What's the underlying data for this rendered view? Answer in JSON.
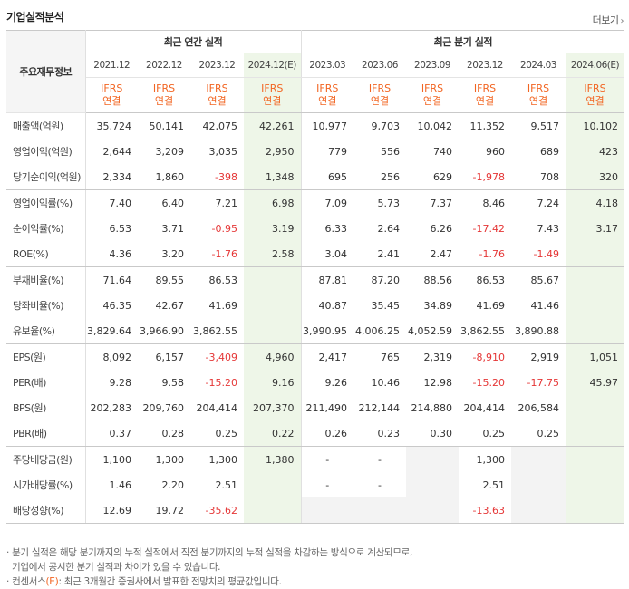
{
  "title": "기업실적분석",
  "more_label": "더보기",
  "row_header_label": "주요재무정보",
  "annual_group": "최근 연간 실적",
  "quarter_group": "최근 분기 실적",
  "periods": [
    "2021.12",
    "2022.12",
    "2023.12",
    "2024.12(E)",
    "2023.03",
    "2023.06",
    "2023.09",
    "2023.12",
    "2024.03",
    "2024.06(E)"
  ],
  "ifrs": [
    "IFRS",
    "IFRS",
    "IFRS",
    "IFRS",
    "IFRS",
    "IFRS",
    "IFRS",
    "IFRS",
    "IFRS",
    "IFRS"
  ],
  "consol": [
    "연결",
    "연결",
    "연결",
    "연결",
    "연결",
    "연결",
    "연결",
    "연결",
    "연결",
    "연결"
  ],
  "rows": [
    {
      "label": "매출액(억원)",
      "values": [
        "35,724",
        "50,141",
        "42,075",
        "42,261",
        "10,977",
        "9,703",
        "10,042",
        "11,352",
        "9,517",
        "10,102"
      ]
    },
    {
      "label": "영업이익(억원)",
      "values": [
        "2,644",
        "3,209",
        "3,035",
        "2,950",
        "779",
        "556",
        "740",
        "960",
        "689",
        "423"
      ]
    },
    {
      "label": "당기순이익(억원)",
      "values": [
        "2,334",
        "1,860",
        "-398",
        "1,348",
        "695",
        "256",
        "629",
        "-1,978",
        "708",
        "320"
      ]
    },
    {
      "label": "영업이익률(%)",
      "values": [
        "7.40",
        "6.40",
        "7.21",
        "6.98",
        "7.09",
        "5.73",
        "7.37",
        "8.46",
        "7.24",
        "4.18"
      ]
    },
    {
      "label": "순이익률(%)",
      "values": [
        "6.53",
        "3.71",
        "-0.95",
        "3.19",
        "6.33",
        "2.64",
        "6.26",
        "-17.42",
        "7.43",
        "3.17"
      ]
    },
    {
      "label": "ROE(%)",
      "values": [
        "4.36",
        "3.20",
        "-1.76",
        "2.58",
        "3.04",
        "2.41",
        "2.47",
        "-1.76",
        "-1.49",
        ""
      ]
    },
    {
      "label": "부채비율(%)",
      "values": [
        "71.64",
        "89.55",
        "86.53",
        "",
        "87.81",
        "87.20",
        "88.56",
        "86.53",
        "85.67",
        ""
      ]
    },
    {
      "label": "당좌비율(%)",
      "values": [
        "46.35",
        "42.67",
        "41.69",
        "",
        "40.87",
        "35.45",
        "34.89",
        "41.69",
        "41.46",
        ""
      ]
    },
    {
      "label": "유보율(%)",
      "values": [
        "3,829.64",
        "3,966.90",
        "3,862.55",
        "",
        "3,990.95",
        "4,006.25",
        "4,052.59",
        "3,862.55",
        "3,890.88",
        ""
      ]
    },
    {
      "label": "EPS(원)",
      "values": [
        "8,092",
        "6,157",
        "-3,409",
        "4,960",
        "2,417",
        "765",
        "2,319",
        "-8,910",
        "2,919",
        "1,051"
      ]
    },
    {
      "label": "PER(배)",
      "values": [
        "9.28",
        "9.58",
        "-15.20",
        "9.16",
        "9.26",
        "10.46",
        "12.98",
        "-15.20",
        "-17.75",
        "45.97"
      ]
    },
    {
      "label": "BPS(원)",
      "values": [
        "202,283",
        "209,760",
        "204,414",
        "207,370",
        "211,490",
        "212,144",
        "214,880",
        "204,414",
        "206,584",
        ""
      ]
    },
    {
      "label": "PBR(배)",
      "values": [
        "0.37",
        "0.28",
        "0.25",
        "0.22",
        "0.26",
        "0.23",
        "0.30",
        "0.25",
        "0.25",
        ""
      ]
    },
    {
      "label": "주당배당금(원)",
      "values": [
        "1,100",
        "1,300",
        "1,300",
        "1,380",
        "-",
        "-",
        "",
        "1,300",
        "",
        ""
      ]
    },
    {
      "label": "시가배당률(%)",
      "values": [
        "1.46",
        "2.20",
        "2.51",
        "",
        "-",
        "-",
        "",
        "2.51",
        "",
        ""
      ]
    },
    {
      "label": "배당성향(%)",
      "values": [
        "12.69",
        "19.72",
        "-35.62",
        "",
        "",
        "",
        "",
        "-13.63",
        "",
        ""
      ]
    }
  ],
  "notes": [
    "· 분기 실적은 해당 분기까지의 누적 실적에서 직전 분기까지의 누적 실적을 차감하는 방식으로 계산되므로,",
    "  기업에서 공시한 분기 실적과 차이가 있을 수 있습니다.",
    "· 컨센서스",
    "(E)",
    ": 최근 3개월간 증권사에서 발표한 전망치의 평균값입니다."
  ],
  "colors": {
    "accent": "#f26522",
    "negative": "#e53636",
    "estimate_bg": "#eef6e8",
    "empty_bg": "#f3f3f3"
  }
}
